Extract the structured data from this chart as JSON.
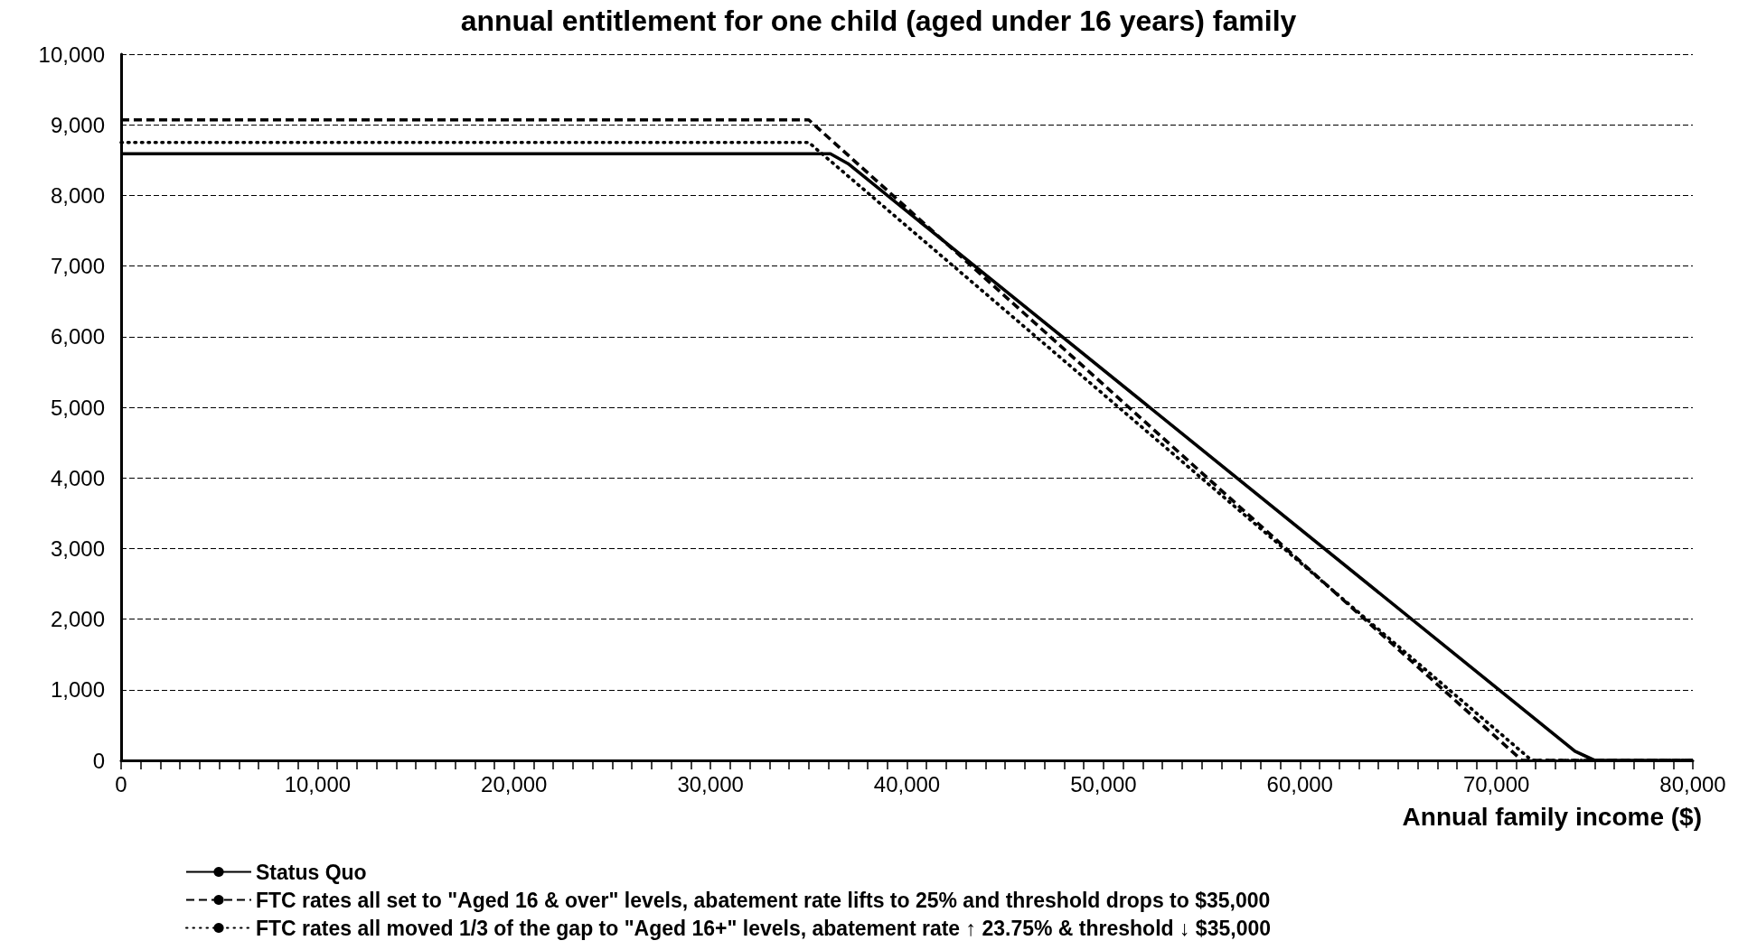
{
  "chart_data": {
    "type": "line",
    "title": "annual entitlement for one child (aged under 16 years) family",
    "xlabel": "Annual family income ($)",
    "series": [
      {
        "name": "Status Quo",
        "color": "#000000",
        "line_style": "solid",
        "x": [
          0,
          36100,
          37000,
          74000,
          75000,
          80000
        ],
        "values": [
          8590,
          8590,
          8450,
          130,
          0,
          0
        ]
      },
      {
        "name": "FTC rates all set to \"Aged 16 & over\" levels, abatement rate lifts to 25% and threshold drops to $35,000",
        "color": "#000000",
        "line_style": "dashed",
        "x": [
          0,
          35000,
          71300,
          80000
        ],
        "values": [
          9070,
          9070,
          0,
          0
        ]
      },
      {
        "name": "FTC rates all moved 1/3 of the gap to \"Aged 16+\" levels, abatement rate ↑ 23.75% & threshold ↓ $35,000",
        "color": "#000000",
        "line_style": "dotted",
        "x": [
          0,
          35000,
          71800,
          80000
        ],
        "values": [
          8750,
          8750,
          0,
          0
        ]
      }
    ],
    "xlim": [
      0,
      80000
    ],
    "xticks": [
      0,
      {
        "value": 1000,
        "label": null
      },
      {
        "value": 2000,
        "label": null
      },
      {
        "value": 3000,
        "label": null
      },
      {
        "value": 4000,
        "label": null
      },
      {
        "value": 5000,
        "label": null
      },
      {
        "value": 6000,
        "label": null
      },
      {
        "value": 7000,
        "label": null
      },
      {
        "value": 8000,
        "label": null
      },
      {
        "value": 9000,
        "label": null
      },
      {
        "value": 10000,
        "label": "10,000"
      },
      {
        "value": 11000,
        "label": null
      },
      {
        "value": 12000,
        "label": null
      },
      {
        "value": 13000,
        "label": null
      },
      {
        "value": 14000,
        "label": null
      },
      {
        "value": 15000,
        "label": null
      },
      {
        "value": 16000,
        "label": null
      },
      {
        "value": 17000,
        "label": null
      },
      {
        "value": 18000,
        "label": null
      },
      {
        "value": 19000,
        "label": null
      },
      {
        "value": 20000,
        "label": "20,000"
      },
      {
        "value": 21000,
        "label": null
      },
      {
        "value": 22000,
        "label": null
      },
      {
        "value": 23000,
        "label": null
      },
      {
        "value": 24000,
        "label": null
      },
      {
        "value": 25000,
        "label": null
      },
      {
        "value": 26000,
        "label": null
      },
      {
        "value": 27000,
        "label": null
      },
      {
        "value": 28000,
        "label": null
      },
      {
        "value": 29000,
        "label": null
      },
      {
        "value": 30000,
        "label": "30,000"
      },
      {
        "value": 31000,
        "label": null
      },
      {
        "value": 32000,
        "label": null
      },
      {
        "value": 33000,
        "label": null
      },
      {
        "value": 34000,
        "label": null
      },
      {
        "value": 35000,
        "label": null
      },
      {
        "value": 36000,
        "label": null
      },
      {
        "value": 37000,
        "label": null
      },
      {
        "value": 38000,
        "label": null
      },
      {
        "value": 39000,
        "label": null
      },
      {
        "value": 40000,
        "label": "40,000"
      },
      {
        "value": 41000,
        "label": null
      },
      {
        "value": 42000,
        "label": null
      },
      {
        "value": 43000,
        "label": null
      },
      {
        "value": 44000,
        "label": null
      },
      {
        "value": 45000,
        "label": null
      },
      {
        "value": 46000,
        "label": null
      },
      {
        "value": 47000,
        "label": null
      },
      {
        "value": 48000,
        "label": null
      },
      {
        "value": 49000,
        "label": null
      },
      {
        "value": 50000,
        "label": "50,000"
      },
      {
        "value": 51000,
        "label": null
      },
      {
        "value": 52000,
        "label": null
      },
      {
        "value": 53000,
        "label": null
      },
      {
        "value": 54000,
        "label": null
      },
      {
        "value": 55000,
        "label": null
      },
      {
        "value": 56000,
        "label": null
      },
      {
        "value": 57000,
        "label": null
      },
      {
        "value": 58000,
        "label": null
      },
      {
        "value": 59000,
        "label": null
      },
      {
        "value": 60000,
        "label": "60,000"
      },
      {
        "value": 61000,
        "label": null
      },
      {
        "value": 62000,
        "label": null
      },
      {
        "value": 63000,
        "label": null
      },
      {
        "value": 64000,
        "label": null
      },
      {
        "value": 65000,
        "label": null
      },
      {
        "value": 66000,
        "label": null
      },
      {
        "value": 67000,
        "label": null
      },
      {
        "value": 68000,
        "label": null
      },
      {
        "value": 69000,
        "label": null
      },
      {
        "value": 70000,
        "label": "70,000"
      },
      {
        "value": 71000,
        "label": null
      },
      {
        "value": 72000,
        "label": null
      },
      {
        "value": 73000,
        "label": null
      },
      {
        "value": 74000,
        "label": null
      },
      {
        "value": 75000,
        "label": null
      },
      {
        "value": 76000,
        "label": null
      },
      {
        "value": 77000,
        "label": null
      },
      {
        "value": 78000,
        "label": null
      },
      {
        "value": 79000,
        "label": null
      },
      {
        "value": 80000,
        "label": "80,000"
      }
    ],
    "ylim": [
      0,
      10000
    ],
    "yticks": [
      {
        "value": 0,
        "label": "0"
      },
      {
        "value": 1000,
        "label": "1,000"
      },
      {
        "value": 2000,
        "label": "2,000"
      },
      {
        "value": 3000,
        "label": "3,000"
      },
      {
        "value": 4000,
        "label": "4,000"
      },
      {
        "value": 5000,
        "label": "5,000"
      },
      {
        "value": 6000,
        "label": "6,000"
      },
      {
        "value": 7000,
        "label": "7,000"
      },
      {
        "value": 8000,
        "label": "8,000"
      },
      {
        "value": 9000,
        "label": "9,000"
      },
      {
        "value": 10000,
        "label": "10,000"
      }
    ],
    "grid": "y",
    "legend": "bottom",
    "marker": "none"
  }
}
